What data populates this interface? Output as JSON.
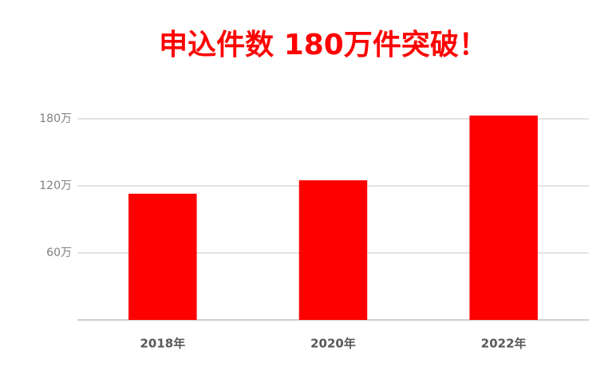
{
  "chart_data": {
    "type": "bar",
    "title": "申込件数 180万件突破！",
    "categories": [
      "2018年",
      "2020年",
      "2022年"
    ],
    "values": [
      113,
      125,
      183
    ],
    "color": "#ff0000",
    "ylim": [
      0,
      190
    ],
    "yticks": [
      {
        "value": 60,
        "label": "60万"
      },
      {
        "value": 120,
        "label": "120万"
      },
      {
        "value": 180,
        "label": "180万"
      }
    ],
    "grid": true
  }
}
